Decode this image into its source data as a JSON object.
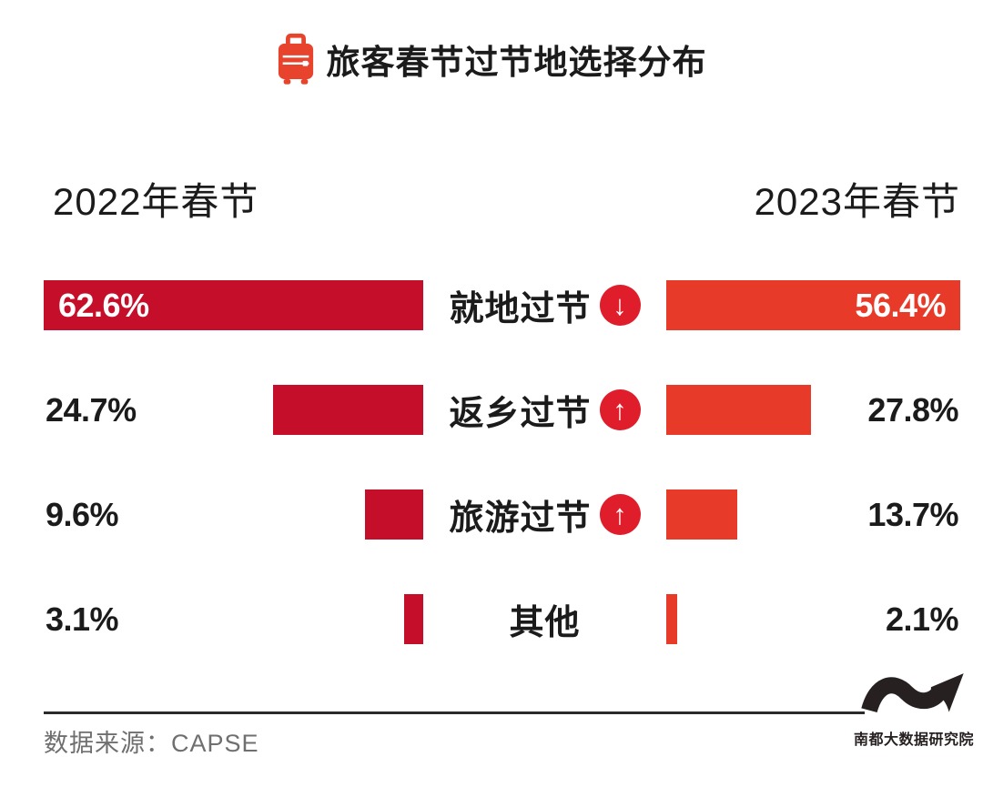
{
  "title": {
    "text": "旅客春节过节地选择分布"
  },
  "chart_data": {
    "type": "bar",
    "orientation": "horizontal",
    "layout": "mirrored-comparison",
    "title": "旅客春节过节地选择分布",
    "categories": [
      "就地过节",
      "返乡过节",
      "旅游过节",
      "其他"
    ],
    "series": [
      {
        "name": "2022年春节",
        "color": "#c50e29",
        "values": [
          62.6,
          24.7,
          9.6,
          3.1
        ],
        "labels": [
          "62.6%",
          "24.7%",
          "9.6%",
          "3.1%"
        ]
      },
      {
        "name": "2023年春节",
        "color": "#e73a28",
        "values": [
          56.4,
          27.8,
          13.7,
          2.1
        ],
        "labels": [
          "56.4%",
          "27.8%",
          "13.7%",
          "2.1%"
        ]
      }
    ],
    "trends": [
      "down",
      "up",
      "up",
      null
    ],
    "unit": "%",
    "xlim": [
      0,
      62.6
    ],
    "grid": false,
    "legend_position": "top-as-column-headers"
  },
  "icons": {
    "arrow_up": "↑",
    "arrow_down": "↓",
    "title_icon": "suitcase-icon",
    "logo_icon": "wave-swoosh-icon"
  },
  "footer": {
    "source": "数据来源：CAPSE",
    "logo_text": "南都大数据研究院"
  },
  "colors": {
    "bar_2022": "#c50e29",
    "bar_2023": "#e73a28",
    "trend_badge": "#e01e2b",
    "accent": "#e8432c",
    "text": "#1b1b1b",
    "source_text": "#6f6f6f",
    "logo_ink": "#272020"
  }
}
